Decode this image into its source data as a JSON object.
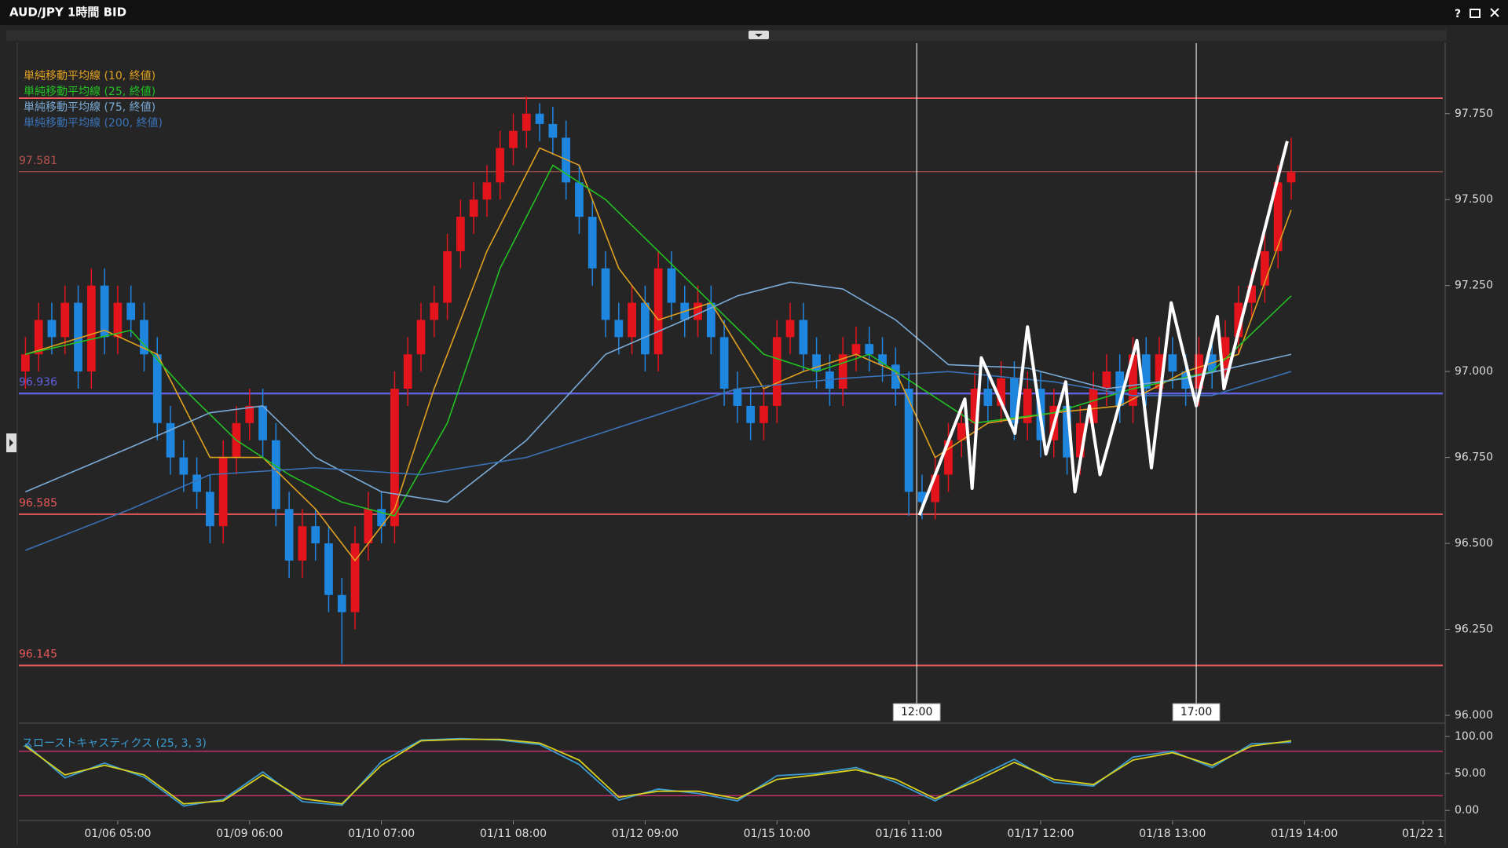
{
  "window": {
    "title": "AUD/JPY 1時間 BID",
    "help": "?"
  },
  "chart_data": [
    {
      "type": "candlestick",
      "xlim": [
        -0.5,
        107.5
      ],
      "ylim": [
        95.984,
        97.955
      ],
      "yticks": [
        {
          "value": 96,
          "label": "96.000"
        },
        {
          "value": 96.25,
          "label": "96.250"
        },
        {
          "value": 96.5,
          "label": "96.500"
        },
        {
          "value": 96.75,
          "label": "96.750"
        },
        {
          "value": 97,
          "label": "97.000"
        },
        {
          "value": 97.25,
          "label": "97.250"
        },
        {
          "value": 97.5,
          "label": "97.500"
        },
        {
          "value": 97.75,
          "label": "97.750"
        }
      ],
      "up_color": "#e3141c",
      "down_color": "#1f86e0",
      "open": [
        97.0,
        97.05,
        97.15,
        97.1,
        97.2,
        97.0,
        97.25,
        97.1,
        97.2,
        97.15,
        97.05,
        96.85,
        96.75,
        96.7,
        96.65,
        96.55,
        96.75,
        96.85,
        96.9,
        96.8,
        96.6,
        96.45,
        96.55,
        96.5,
        96.35,
        96.3,
        96.5,
        96.6,
        96.55,
        96.95,
        97.05,
        97.15,
        97.2,
        97.35,
        97.45,
        97.5,
        97.55,
        97.65,
        97.7,
        97.75,
        97.72,
        97.68,
        97.55,
        97.45,
        97.3,
        97.15,
        97.1,
        97.2,
        97.05,
        97.3,
        97.2,
        97.15,
        97.2,
        97.1,
        96.95,
        96.9,
        96.85,
        96.9,
        97.1,
        97.15,
        97.05,
        97.0,
        96.95,
        97.05,
        97.08,
        97.05,
        97.02,
        96.95,
        96.65,
        96.62,
        96.7,
        96.8,
        96.85,
        96.95,
        96.9,
        96.98,
        96.85,
        96.95,
        96.8,
        96.9,
        96.75,
        96.85,
        96.95,
        97.0,
        96.9,
        97.05,
        96.95,
        97.05,
        97.0,
        96.95,
        97.05,
        97.0,
        97.1,
        97.2,
        97.25,
        97.35,
        97.55
      ],
      "high": [
        97.1,
        97.2,
        97.2,
        97.25,
        97.25,
        97.3,
        97.3,
        97.25,
        97.25,
        97.2,
        97.1,
        96.9,
        96.8,
        96.75,
        96.7,
        96.8,
        96.9,
        96.95,
        96.95,
        96.85,
        96.65,
        96.6,
        96.6,
        96.55,
        96.4,
        96.55,
        96.65,
        96.65,
        97.0,
        97.1,
        97.2,
        97.25,
        97.4,
        97.5,
        97.55,
        97.6,
        97.7,
        97.75,
        97.8,
        97.78,
        97.77,
        97.73,
        97.6,
        97.5,
        97.35,
        97.2,
        97.25,
        97.25,
        97.35,
        97.35,
        97.25,
        97.25,
        97.25,
        97.15,
        97.0,
        96.95,
        96.95,
        97.15,
        97.2,
        97.2,
        97.1,
        97.05,
        97.1,
        97.13,
        97.13,
        97.1,
        97.07,
        97.0,
        96.7,
        96.75,
        96.85,
        96.9,
        97.0,
        97.0,
        97.03,
        97.03,
        97.0,
        97.0,
        96.95,
        96.95,
        96.9,
        97.0,
        97.05,
        97.05,
        97.1,
        97.1,
        97.1,
        97.1,
        97.05,
        97.1,
        97.1,
        97.15,
        97.25,
        97.3,
        97.4,
        97.6,
        97.68
      ],
      "low": [
        96.95,
        97.0,
        97.05,
        97.05,
        96.95,
        96.95,
        97.05,
        97.05,
        97.1,
        97.0,
        96.8,
        96.7,
        96.65,
        96.6,
        96.5,
        96.5,
        96.7,
        96.8,
        96.75,
        96.55,
        96.4,
        96.4,
        96.45,
        96.3,
        96.15,
        96.25,
        96.45,
        96.5,
        96.5,
        96.9,
        97.0,
        97.1,
        97.15,
        97.3,
        97.4,
        97.45,
        97.5,
        97.6,
        97.65,
        97.67,
        97.63,
        97.5,
        97.4,
        97.25,
        97.1,
        97.05,
        97.05,
        97.0,
        97.0,
        97.15,
        97.1,
        97.1,
        97.05,
        96.9,
        96.85,
        96.8,
        96.8,
        96.85,
        97.05,
        97.0,
        96.95,
        96.9,
        96.9,
        97.0,
        97.0,
        96.97,
        96.9,
        96.58,
        96.57,
        96.57,
        96.65,
        96.75,
        96.8,
        96.85,
        96.85,
        96.8,
        96.8,
        96.75,
        96.75,
        96.7,
        96.7,
        96.8,
        96.9,
        96.85,
        96.85,
        96.9,
        96.9,
        96.95,
        96.9,
        96.9,
        96.95,
        96.95,
        97.05,
        97.15,
        97.2,
        97.3,
        97.5
      ],
      "close": [
        97.05,
        97.15,
        97.1,
        97.2,
        97.0,
        97.25,
        97.1,
        97.2,
        97.15,
        97.05,
        96.85,
        96.75,
        96.7,
        96.65,
        96.55,
        96.75,
        96.85,
        96.9,
        96.8,
        96.6,
        96.45,
        96.55,
        96.5,
        96.35,
        96.3,
        96.5,
        96.6,
        96.55,
        96.95,
        97.05,
        97.15,
        97.2,
        97.35,
        97.45,
        97.5,
        97.55,
        97.65,
        97.7,
        97.75,
        97.72,
        97.68,
        97.55,
        97.45,
        97.3,
        97.15,
        97.1,
        97.2,
        97.05,
        97.3,
        97.2,
        97.15,
        97.2,
        97.1,
        96.95,
        96.9,
        96.85,
        96.9,
        97.1,
        97.15,
        97.05,
        97.0,
        96.95,
        97.05,
        97.08,
        97.05,
        97.02,
        96.95,
        96.65,
        96.62,
        96.7,
        96.8,
        96.85,
        96.95,
        96.9,
        96.98,
        96.85,
        96.95,
        96.8,
        96.9,
        96.75,
        96.85,
        96.95,
        97.0,
        96.9,
        97.05,
        96.95,
        97.05,
        97.0,
        96.95,
        97.05,
        97.0,
        97.1,
        97.2,
        97.25,
        97.35,
        97.55,
        97.58
      ],
      "overlays": [
        {
          "name": "単純移動平均線 (10, 終値)",
          "color": "#e0a020",
          "x": [
            0,
            6,
            10,
            14,
            18,
            22,
            25,
            28,
            31,
            35,
            39,
            42,
            45,
            48,
            52,
            56,
            59,
            63,
            66,
            69,
            73,
            78,
            83,
            88,
            92,
            96
          ],
          "values": [
            97.05,
            97.12,
            97.05,
            96.75,
            96.75,
            96.6,
            96.45,
            96.6,
            96.95,
            97.35,
            97.65,
            97.6,
            97.3,
            97.15,
            97.2,
            96.95,
            97.0,
            97.05,
            97.0,
            96.75,
            96.85,
            96.88,
            96.9,
            97.0,
            97.05,
            97.47
          ]
        },
        {
          "name": "単純移動平均線 (25, 終値)",
          "color": "#22c022",
          "x": [
            0,
            8,
            12,
            16,
            20,
            24,
            28,
            32,
            36,
            40,
            44,
            48,
            52,
            56,
            60,
            64,
            68,
            72,
            78,
            84,
            90,
            96
          ],
          "values": [
            97.05,
            97.12,
            96.95,
            96.8,
            96.7,
            96.62,
            96.58,
            96.85,
            97.3,
            97.6,
            97.5,
            97.35,
            97.2,
            97.05,
            97.0,
            97.05,
            96.95,
            96.85,
            96.88,
            96.95,
            97.0,
            97.22
          ]
        },
        {
          "name": "単純移動平均線 (75, 終値)",
          "color": "#7aaad6",
          "x": [
            0,
            8,
            14,
            18,
            22,
            27,
            32,
            38,
            44,
            50,
            54,
            58,
            62,
            66,
            70,
            76,
            82,
            88,
            96
          ],
          "values": [
            96.65,
            96.78,
            96.88,
            96.9,
            96.75,
            96.65,
            96.62,
            96.8,
            97.05,
            97.15,
            97.22,
            97.26,
            97.24,
            97.15,
            97.02,
            97.01,
            96.95,
            96.98,
            97.05
          ]
        },
        {
          "name": "単純移動平均線 (200, 終値)",
          "color": "#3a72b8",
          "x": [
            0,
            8,
            14,
            22,
            30,
            38,
            46,
            54,
            62,
            70,
            78,
            84,
            90,
            96
          ],
          "values": [
            96.48,
            96.6,
            96.7,
            96.72,
            96.7,
            96.75,
            96.85,
            96.95,
            96.98,
            97.0,
            96.97,
            96.93,
            96.93,
            97.0
          ]
        }
      ],
      "levels": [
        {
          "value": 97.795,
          "color": "#e8585a",
          "width": 2,
          "show_label": false
        },
        {
          "value": 97.581,
          "color": "#b85450",
          "width": 1,
          "show_label": true
        },
        {
          "value": 96.936,
          "color": "#6060e0",
          "width": 2.5,
          "show_label": true
        },
        {
          "value": 96.585,
          "color": "#e8585a",
          "width": 2,
          "show_label": true
        },
        {
          "value": 96.145,
          "color": "#e8585a",
          "width": 2,
          "show_label": true
        }
      ],
      "markers": [
        {
          "x": 67.6,
          "label": "12:00"
        },
        {
          "x": 88.8,
          "label": "17:00"
        }
      ],
      "annotation": {
        "color": "#ffffff",
        "x": [
          67.8,
          71.25,
          71.8,
          72.5,
          75.05,
          76.0,
          77.4,
          78.9,
          79.6,
          80.7,
          81.5,
          84.3,
          85.4,
          86.9,
          88.8,
          90.4,
          90.9,
          95.7
        ],
        "values": [
          96.582,
          96.92,
          96.66,
          97.04,
          96.82,
          97.13,
          96.76,
          96.97,
          96.65,
          96.9,
          96.7,
          97.09,
          96.72,
          97.2,
          96.9,
          97.16,
          96.95,
          97.67
        ]
      }
    },
    {
      "type": "line",
      "title": "スローストキャスティクス (25, 3, 3)",
      "xlim": [
        -0.5,
        107.5
      ],
      "ylim": [
        -11.4,
        113.6
      ],
      "yticks": [
        {
          "value": 0,
          "label": "0.00"
        },
        {
          "value": 50,
          "label": "50.00"
        },
        {
          "value": 100,
          "label": "100.00"
        }
      ],
      "xticks": [
        {
          "value": 7,
          "label": "01/06 05:00"
        },
        {
          "value": 17,
          "label": "01/09 06:00"
        },
        {
          "value": 27,
          "label": "01/10 07:00"
        },
        {
          "value": 37,
          "label": "01/11 08:00"
        },
        {
          "value": 47,
          "label": "01/12 09:00"
        },
        {
          "value": 57,
          "label": "01/15 10:00"
        },
        {
          "value": 67,
          "label": "01/16 11:00"
        },
        {
          "value": 77,
          "label": "01/17 12:00"
        },
        {
          "value": 87,
          "label": "01/18 13:00"
        },
        {
          "value": 97,
          "label": "01/19 14:00"
        },
        {
          "value": 106,
          "label": "01/22 1"
        }
      ],
      "levels": [
        {
          "value": 80,
          "color": "#c0306a"
        },
        {
          "value": 20,
          "color": "#c0306a"
        }
      ],
      "x": [
        0,
        3,
        6,
        9,
        12,
        15,
        18,
        21,
        24,
        27,
        30,
        33,
        36,
        39,
        42,
        45,
        48,
        51,
        54,
        57,
        60,
        63,
        66,
        69,
        72,
        75,
        78,
        81,
        84,
        87,
        90,
        93,
        96
      ],
      "series": [
        {
          "color": "#3a9ad0",
          "values": [
            90,
            44,
            64,
            45,
            6,
            15,
            52,
            12,
            7,
            66,
            95,
            97,
            95,
            89,
            62,
            14,
            29,
            23,
            13,
            47,
            50,
            58,
            38,
            13,
            43,
            69,
            38,
            33,
            72,
            80,
            58,
            90,
            92
          ]
        },
        {
          "color": "#d8d020",
          "values": [
            87,
            48,
            61,
            48,
            9,
            13,
            48,
            16,
            9,
            61,
            94,
            96,
            96,
            91,
            68,
            18,
            26,
            26,
            16,
            42,
            48,
            55,
            42,
            16,
            39,
            65,
            42,
            35,
            68,
            78,
            61,
            87,
            94
          ]
        }
      ]
    }
  ]
}
